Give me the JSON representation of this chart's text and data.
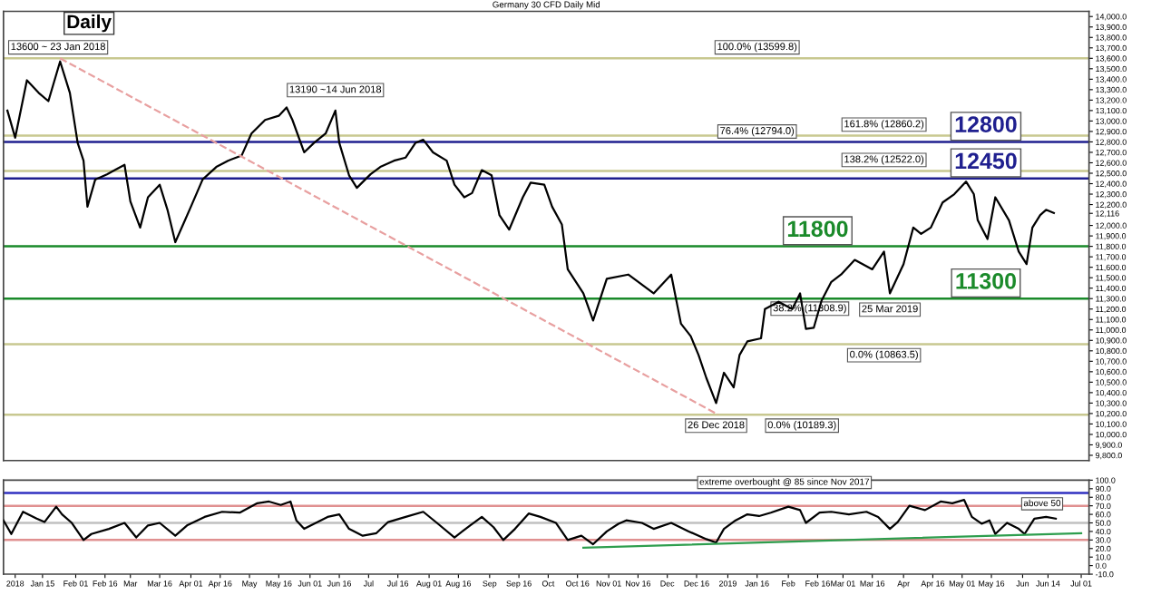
{
  "chart_data": [
    {
      "type": "line",
      "title": "Germany 30 CFD Daily Mid",
      "xlim": [
        "2017-12-26",
        "2019-07-05"
      ],
      "ylim": [
        9750,
        14050
      ],
      "tick_labels": "y",
      "grid": false,
      "legend": false,
      "yticks": [
        {
          "value": 9800,
          "label": "9,800.0"
        },
        {
          "value": 9900,
          "label": "9,900.0"
        },
        {
          "value": 10000,
          "label": "10,000.0"
        },
        {
          "value": 10100,
          "label": "10,100.0"
        },
        {
          "value": 10200,
          "label": "10,200.0"
        },
        {
          "value": 10300,
          "label": "10,300.0"
        },
        {
          "value": 10400,
          "label": "10,400.0"
        },
        {
          "value": 10500,
          "label": "10,500.0"
        },
        {
          "value": 10600,
          "label": "10,600.0"
        },
        {
          "value": 10700,
          "label": "10,700.0"
        },
        {
          "value": 10800,
          "label": "10,800.0"
        },
        {
          "value": 10900,
          "label": "10,900.0"
        },
        {
          "value": 11000,
          "label": "11,000.0"
        },
        {
          "value": 11100,
          "label": "11,100.0"
        },
        {
          "value": 11200,
          "label": "11,200.0"
        },
        {
          "value": 11300,
          "label": "11,300.0"
        },
        {
          "value": 11400,
          "label": "11,400.0"
        },
        {
          "value": 11500,
          "label": "11,500.0"
        },
        {
          "value": 11600,
          "label": "11,600.0"
        },
        {
          "value": 11700,
          "label": "11,700.0"
        },
        {
          "value": 11800,
          "label": "11,800.0"
        },
        {
          "value": 11900,
          "label": "11,900.0"
        },
        {
          "value": 12000,
          "label": "12,000.0"
        },
        {
          "value": 12116,
          "label": "12,116"
        },
        {
          "value": 12200,
          "label": "12,200.0"
        },
        {
          "value": 12300,
          "label": "12,300.0"
        },
        {
          "value": 12400,
          "label": "12,400.0"
        },
        {
          "value": 12500,
          "label": "12,500.0"
        },
        {
          "value": 12600,
          "label": "12,600.0"
        },
        {
          "value": 12700,
          "label": "12,700.0"
        },
        {
          "value": 12800,
          "label": "12,800.0"
        },
        {
          "value": 12900,
          "label": "12,900.0"
        },
        {
          "value": 13000,
          "label": "13,000.0"
        },
        {
          "value": 13100,
          "label": "13,100.0"
        },
        {
          "value": 13200,
          "label": "13,200.0"
        },
        {
          "value": 13300,
          "label": "13,300.0"
        },
        {
          "value": 13400,
          "label": "13,400.0"
        },
        {
          "value": 13500,
          "label": "13,500.0"
        },
        {
          "value": 13600,
          "label": "13,600.0"
        },
        {
          "value": 13700,
          "label": "13,700.0"
        },
        {
          "value": 13800,
          "label": "13,800.0"
        },
        {
          "value": 13900,
          "label": "13,900.0"
        },
        {
          "value": 14000,
          "label": "14,000.0"
        }
      ],
      "series": [
        {
          "color": "#000000",
          "line_style": "solid",
          "x": [
            "2017-12-28",
            "2018-01-01",
            "2018-01-07",
            "2018-01-13",
            "2018-01-18",
            "2018-01-24",
            "2018-01-29",
            "2018-02-02",
            "2018-02-05",
            "2018-02-07",
            "2018-02-11",
            "2018-02-17",
            "2018-02-21",
            "2018-02-26",
            "2018-03-01",
            "2018-03-06",
            "2018-03-10",
            "2018-03-16",
            "2018-03-20",
            "2018-03-24",
            "2018-03-28",
            "2018-04-01",
            "2018-04-07",
            "2018-04-14",
            "2018-04-20",
            "2018-04-27",
            "2018-05-02",
            "2018-05-09",
            "2018-05-16",
            "2018-05-20",
            "2018-05-23",
            "2018-05-29",
            "2018-06-03",
            "2018-06-09",
            "2018-06-14",
            "2018-06-16",
            "2018-06-21",
            "2018-06-25",
            "2018-07-02",
            "2018-07-07",
            "2018-07-14",
            "2018-07-20",
            "2018-07-25",
            "2018-07-29",
            "2018-08-03",
            "2018-08-10",
            "2018-08-14",
            "2018-08-19",
            "2018-08-23",
            "2018-08-28",
            "2018-09-02",
            "2018-09-06",
            "2018-09-11",
            "2018-09-18",
            "2018-09-22",
            "2018-09-29",
            "2018-10-03",
            "2018-10-08",
            "2018-10-11",
            "2018-10-19",
            "2018-10-24",
            "2018-10-31",
            "2018-11-11",
            "2018-11-24",
            "2018-12-03",
            "2018-12-08",
            "2018-12-13",
            "2018-12-17",
            "2018-12-21",
            "2018-12-26",
            "2018-12-30",
            "2019-01-04",
            "2019-01-07",
            "2019-01-11",
            "2019-01-18",
            "2019-01-20",
            "2019-01-27",
            "2019-02-03",
            "2019-02-07",
            "2019-02-10",
            "2019-02-14",
            "2019-02-18",
            "2019-02-23",
            "2019-02-28",
            "2019-03-07",
            "2019-03-16",
            "2019-03-22",
            "2019-03-25",
            "2019-04-01",
            "2019-04-06",
            "2019-04-10",
            "2019-04-15",
            "2019-04-21",
            "2019-04-27",
            "2019-05-03",
            "2019-05-07",
            "2019-05-09",
            "2019-05-14",
            "2019-05-18",
            "2019-05-25",
            "2019-05-30",
            "2019-06-03",
            "2019-06-06",
            "2019-06-10",
            "2019-06-13",
            "2019-06-17"
          ],
          "values": [
            13100,
            12840,
            13390,
            13270,
            13190,
            13570,
            13270,
            12790,
            12620,
            12180,
            12440,
            12490,
            12530,
            12580,
            12230,
            11980,
            12270,
            12390,
            12150,
            11840,
            12010,
            12180,
            12440,
            12560,
            12620,
            12670,
            12880,
            13010,
            13050,
            13130,
            13010,
            12700,
            12790,
            12880,
            13100,
            12790,
            12480,
            12360,
            12490,
            12560,
            12620,
            12650,
            12790,
            12820,
            12700,
            12620,
            12390,
            12270,
            12310,
            12530,
            12480,
            12100,
            11960,
            12270,
            12410,
            12390,
            12180,
            12010,
            11580,
            11350,
            11090,
            11490,
            11530,
            11350,
            11530,
            11060,
            10940,
            10760,
            10540,
            10300,
            10590,
            10450,
            10760,
            10890,
            10920,
            11200,
            11270,
            11200,
            11350,
            11010,
            11020,
            11280,
            11460,
            11530,
            11670,
            11580,
            11750,
            11350,
            11630,
            11980,
            11920,
            11980,
            12220,
            12300,
            12420,
            12300,
            12050,
            11870,
            12270,
            12050,
            11750,
            11630,
            11980,
            12100,
            12150,
            12120
          ]
        },
        {
          "color": "#e8a0a0",
          "line_style": "dashed",
          "x": [
            "2018-01-24",
            "2018-12-27"
          ],
          "values": [
            13600,
            10190
          ]
        }
      ],
      "ref_lines": [
        {
          "axis": "y",
          "value": 13599.8,
          "color": "#c8c890",
          "line_style": "solid"
        },
        {
          "axis": "y",
          "value": 12860.2,
          "color": "#c8c890",
          "line_style": "solid"
        },
        {
          "axis": "y",
          "value": 12522.0,
          "color": "#c8c890",
          "line_style": "solid"
        },
        {
          "axis": "y",
          "value": 10863.5,
          "color": "#c8c890",
          "line_style": "solid"
        },
        {
          "axis": "y",
          "value": 10189.3,
          "color": "#c8c890",
          "line_style": "solid"
        },
        {
          "axis": "y",
          "value": 12800,
          "label": "12800",
          "color": "#1f1f8f",
          "line_style": "solid"
        },
        {
          "axis": "y",
          "value": 12450,
          "label": "12450",
          "color": "#1f1f8f",
          "line_style": "solid"
        },
        {
          "axis": "y",
          "value": 11800,
          "label": "11800",
          "color": "#1a8a2a",
          "line_style": "solid"
        },
        {
          "axis": "y",
          "value": 11300,
          "label": "11300",
          "color": "#1a8a2a",
          "line_style": "solid"
        }
      ],
      "annotations": [
        "Daily",
        {
          "text": "13600 ~ 23 Jan 2018",
          "x": "2018-01-23",
          "y": 13600
        },
        {
          "text": "13190 ~14 Jun 2018",
          "x": "2018-06-14",
          "y": 13190
        },
        {
          "text": "26 Dec 2018",
          "x": "2018-12-26",
          "y": 10189
        },
        {
          "text": "25 Mar 2019",
          "x": "2019-03-25",
          "y": 11300
        },
        {
          "text": "100.0% (13599.8)",
          "x": "2019-01-16",
          "y": 13599.8
        },
        {
          "text": "76.4% (12794.0)",
          "x": "2019-01-16",
          "y": 12794.0
        },
        {
          "text": "161.8% (12860.2)",
          "x": "2019-03-22",
          "y": 12860.2
        },
        {
          "text": "138.2% (12522.0)",
          "x": "2019-03-22",
          "y": 12522.0
        },
        {
          "text": "38.2% (11308.9)",
          "x": "2019-02-12",
          "y": 11308.9
        },
        {
          "text": "0.0% (10863.5)",
          "x": "2019-03-22",
          "y": 10863.5
        },
        {
          "text": "0.0% (10189.3)",
          "x": "2019-02-08",
          "y": 10189.3
        }
      ]
    },
    {
      "type": "line",
      "xlim": [
        "2017-12-26",
        "2019-07-05"
      ],
      "ylim": [
        -10,
        100
      ],
      "grid": false,
      "legend": false,
      "yticks": [
        {
          "value": -10,
          "label": "-10.0"
        },
        {
          "value": 0,
          "label": "0.0"
        },
        {
          "value": 10,
          "label": "10.0"
        },
        {
          "value": 20,
          "label": "20.0"
        },
        {
          "value": 30,
          "label": "30.0"
        },
        {
          "value": 40,
          "label": "40.0"
        },
        {
          "value": 50,
          "label": "50.0"
        },
        {
          "value": 60,
          "label": "60.0"
        },
        {
          "value": 70,
          "label": "70.0"
        },
        {
          "value": 80,
          "label": "80.0"
        },
        {
          "value": 90,
          "label": "90.0"
        },
        {
          "value": 100,
          "label": "100.0"
        }
      ],
      "xticks": [
        {
          "value": "2018-01-01",
          "label": "2018"
        },
        {
          "value": "2018-01-15",
          "label": "Jan 15"
        },
        {
          "value": "2018-02-01",
          "label": "Feb 01"
        },
        {
          "value": "2018-02-16",
          "label": "Feb 16"
        },
        {
          "value": "2018-03-01",
          "label": "Mar"
        },
        {
          "value": "2018-03-16",
          "label": "Mar 16"
        },
        {
          "value": "2018-04-01",
          "label": "Apr 01"
        },
        {
          "value": "2018-04-16",
          "label": "Apr 16"
        },
        {
          "value": "2018-05-01",
          "label": "May"
        },
        {
          "value": "2018-05-16",
          "label": "May 16"
        },
        {
          "value": "2018-06-01",
          "label": "Jun 01"
        },
        {
          "value": "2018-06-16",
          "label": "Jun 16"
        },
        {
          "value": "2018-07-01",
          "label": "Jul"
        },
        {
          "value": "2018-07-16",
          "label": "Jul 16"
        },
        {
          "value": "2018-08-01",
          "label": "Aug 01"
        },
        {
          "value": "2018-08-16",
          "label": "Aug 16"
        },
        {
          "value": "2018-09-01",
          "label": "Sep"
        },
        {
          "value": "2018-09-16",
          "label": "Sep 16"
        },
        {
          "value": "2018-10-01",
          "label": "Oct"
        },
        {
          "value": "2018-10-16",
          "label": "Oct 16"
        },
        {
          "value": "2018-11-01",
          "label": "Nov 01"
        },
        {
          "value": "2018-11-16",
          "label": "Nov 16"
        },
        {
          "value": "2018-12-01",
          "label": "Dec"
        },
        {
          "value": "2018-12-16",
          "label": "Dec 16"
        },
        {
          "value": "2019-01-01",
          "label": "2019"
        },
        {
          "value": "2019-01-16",
          "label": "Jan 16"
        },
        {
          "value": "2019-02-01",
          "label": "Feb"
        },
        {
          "value": "2019-02-16",
          "label": "Feb 16"
        },
        {
          "value": "2019-03-01",
          "label": "Mar 01"
        },
        {
          "value": "2019-03-16",
          "label": "Mar 16"
        },
        {
          "value": "2019-04-01",
          "label": "Apr"
        },
        {
          "value": "2019-04-16",
          "label": "Apr 16"
        },
        {
          "value": "2019-05-01",
          "label": "May 01"
        },
        {
          "value": "2019-05-16",
          "label": "May 16"
        },
        {
          "value": "2019-06-01",
          "label": "Jun"
        },
        {
          "value": "2019-06-14",
          "label": "Jun 14"
        },
        {
          "value": "2019-07-01",
          "label": "Jul 01"
        }
      ],
      "series": [
        {
          "color": "#000000",
          "line_style": "solid",
          "x": [
            "2017-12-26",
            "2017-12-30",
            "2018-01-05",
            "2018-01-12",
            "2018-01-16",
            "2018-01-22",
            "2018-01-25",
            "2018-01-30",
            "2018-02-05",
            "2018-02-09",
            "2018-02-18",
            "2018-02-26",
            "2018-03-04",
            "2018-03-10",
            "2018-03-16",
            "2018-03-24",
            "2018-03-30",
            "2018-04-08",
            "2018-04-17",
            "2018-04-26",
            "2018-05-05",
            "2018-05-11",
            "2018-05-17",
            "2018-05-22",
            "2018-05-25",
            "2018-05-29",
            "2018-06-04",
            "2018-06-10",
            "2018-06-16",
            "2018-06-21",
            "2018-06-28",
            "2018-07-05",
            "2018-07-11",
            "2018-07-20",
            "2018-07-29",
            "2018-08-05",
            "2018-08-14",
            "2018-08-22",
            "2018-08-28",
            "2018-09-03",
            "2018-09-08",
            "2018-09-14",
            "2018-09-21",
            "2018-09-27",
            "2018-10-05",
            "2018-10-11",
            "2018-10-18",
            "2018-10-24",
            "2018-10-31",
            "2018-11-06",
            "2018-11-10",
            "2018-11-18",
            "2018-11-24",
            "2018-12-03",
            "2018-12-12",
            "2018-12-21",
            "2018-12-26",
            "2018-12-30",
            "2019-01-05",
            "2019-01-11",
            "2019-01-17",
            "2019-01-23",
            "2019-02-01",
            "2019-02-07",
            "2019-02-10",
            "2019-02-17",
            "2019-02-23",
            "2019-03-04",
            "2019-03-13",
            "2019-03-19",
            "2019-03-25",
            "2019-03-29",
            "2019-04-04",
            "2019-04-12",
            "2019-04-20",
            "2019-04-26",
            "2019-05-02",
            "2019-05-06",
            "2019-05-11",
            "2019-05-15",
            "2019-05-18",
            "2019-05-24",
            "2019-05-30",
            "2019-06-02",
            "2019-06-07",
            "2019-06-13",
            "2019-06-18"
          ],
          "values": [
            53,
            37,
            63,
            55,
            51,
            69,
            60,
            50,
            30,
            37,
            43,
            50,
            33,
            47,
            50,
            35,
            47,
            57,
            63,
            62,
            73,
            75,
            71,
            75,
            53,
            43,
            50,
            57,
            60,
            43,
            35,
            38,
            51,
            57,
            63,
            50,
            33,
            47,
            57,
            45,
            30,
            43,
            61,
            57,
            50,
            30,
            35,
            25,
            40,
            49,
            53,
            50,
            43,
            50,
            40,
            31,
            27,
            43,
            53,
            60,
            58,
            62,
            69,
            65,
            50,
            62,
            63,
            60,
            63,
            57,
            43,
            51,
            70,
            65,
            75,
            73,
            77,
            57,
            49,
            53,
            37,
            50,
            43,
            37,
            55,
            57,
            55
          ]
        },
        {
          "color": "#2e9e4e",
          "line_style": "solid",
          "x": [
            "2018-10-19",
            "2019-07-01"
          ],
          "values": [
            21,
            38
          ]
        }
      ],
      "ref_lines": [
        {
          "axis": "y",
          "value": 85,
          "color": "#3030c0",
          "line_style": "solid"
        },
        {
          "axis": "y",
          "value": 70,
          "color": "#e09090",
          "line_style": "solid"
        },
        {
          "axis": "y",
          "value": 50,
          "color": "#c0c0c0",
          "line_style": "solid"
        },
        {
          "axis": "y",
          "value": 30,
          "color": "#e09090",
          "line_style": "solid"
        }
      ],
      "annotations": [
        {
          "text": "extreme overbought @ 85 since Nov 2017",
          "x": "2019-01-30",
          "y": 85
        },
        {
          "text": "above 50",
          "x": "2019-06-11",
          "y": 60
        }
      ]
    }
  ]
}
